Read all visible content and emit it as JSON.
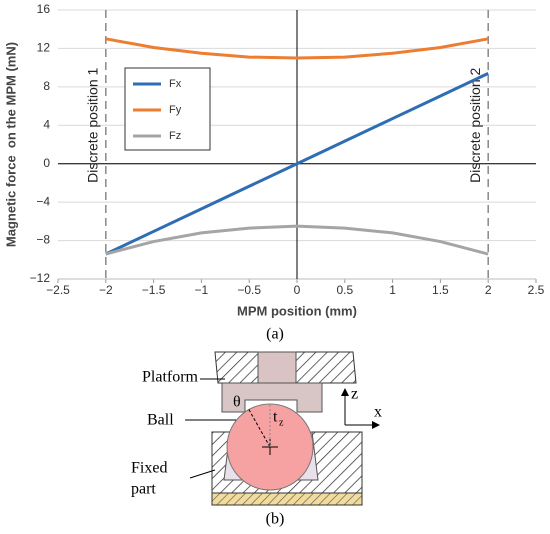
{
  "chart_data": {
    "type": "line",
    "xlabel": "MPM position (mm)",
    "ylabel": "Magnetic force  on the MPM (mN)",
    "x": [
      -2,
      -1.5,
      -1,
      -0.5,
      0,
      0.5,
      1,
      1.5,
      2
    ],
    "series": [
      {
        "name": "Fx",
        "color": "#2e6db4",
        "values": [
          -9.4,
          -7.05,
          -4.7,
          -2.35,
          0,
          2.35,
          4.7,
          7.05,
          9.4
        ]
      },
      {
        "name": "Fy",
        "color": "#ed7d31",
        "values": [
          13,
          12.1,
          11.5,
          11.1,
          11,
          11.1,
          11.5,
          12.1,
          13
        ]
      },
      {
        "name": "Fz",
        "color": "#a5a5a5",
        "values": [
          -9.4,
          -8.1,
          -7.2,
          -6.7,
          -6.5,
          -6.7,
          -7.2,
          -8.1,
          -9.4
        ]
      }
    ],
    "xlim": [
      -2.5,
      2.5
    ],
    "xticks": [
      {
        "value": -2.5,
        "label": "−2.5"
      },
      {
        "value": -2,
        "label": "−2"
      },
      {
        "value": -1.5,
        "label": "−1.5"
      },
      {
        "value": -1,
        "label": "−1"
      },
      {
        "value": -0.5,
        "label": "−0.5"
      },
      0,
      0.5,
      1,
      1.5,
      2,
      2.5
    ],
    "ylim": [
      -12,
      16
    ],
    "yticks": [
      {
        "value": -12,
        "label": "−12"
      },
      {
        "value": -8,
        "label": "−8"
      },
      {
        "value": -4,
        "label": "−4"
      },
      0,
      4,
      8,
      12,
      16
    ],
    "grid": true,
    "annotations": [
      {
        "x": -2,
        "text": "Discrete position 1"
      },
      {
        "x": 2,
        "text": "Discrete position 2"
      }
    ],
    "legend": "upper left",
    "panel_label": "(a)"
  },
  "diagram": {
    "platform": "Platform",
    "ball": "Ball",
    "fixed_part": "Fixed part",
    "theta": "θ",
    "t": "t",
    "t_sub": "z",
    "axis_z": "z",
    "axis_x": "x",
    "panel_label": "(b)"
  }
}
